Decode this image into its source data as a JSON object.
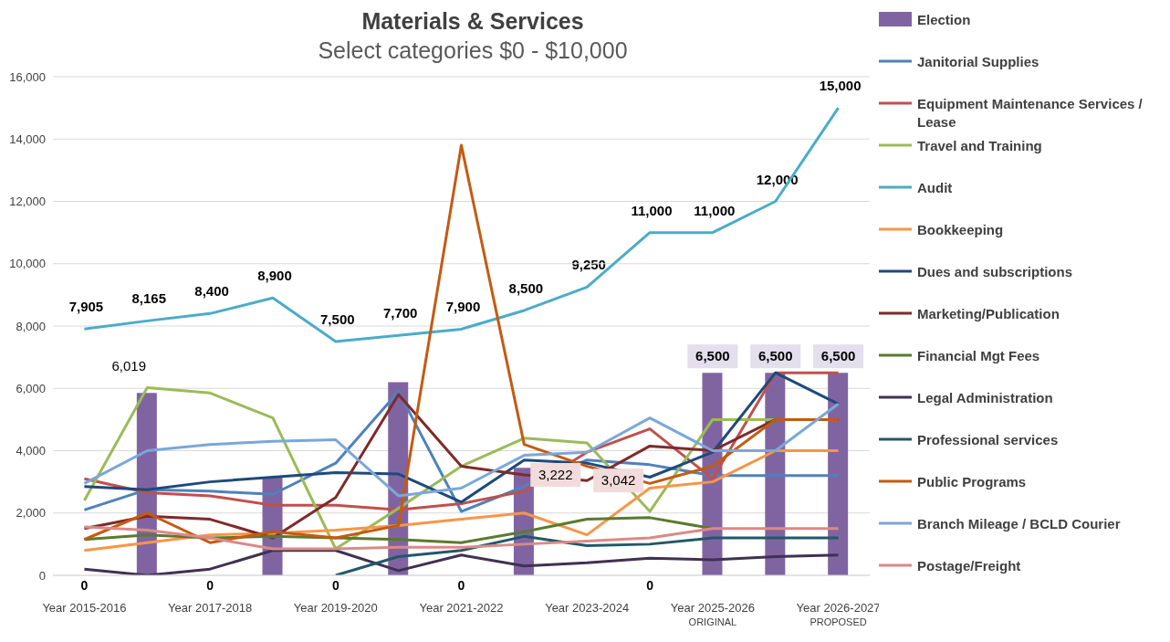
{
  "chart_data": {
    "type": "line",
    "title": "Materials & Services",
    "subtitle": "Select categories $0 - $10,000",
    "categories": [
      "Year 2015-2016",
      null,
      "Year 2017-2018",
      null,
      "Year 2019-2020",
      null,
      "Year 2021-2022",
      null,
      "Year 2023-2024",
      null,
      "Year 2025-2026\nORIGINAL",
      null,
      "Year 2026-2027\nPROPOSED"
    ],
    "series": [
      {
        "name": "Election",
        "type": "bar",
        "color": "#8064a2",
        "values": [
          0,
          5850,
          0,
          3150,
          0,
          6200,
          0,
          3450,
          null,
          0,
          6500,
          6500,
          6500
        ],
        "value_labels": [
          "0",
          null,
          "0",
          null,
          "0",
          null,
          "0",
          null,
          null,
          "0",
          "6,500",
          "6,500",
          "6,500"
        ]
      },
      {
        "name": "Janitorial Supplies",
        "color": "#4f81bd",
        "values": [
          2100,
          2750,
          2700,
          2600,
          3600,
          5900,
          2050,
          2850,
          3700,
          3550,
          3200,
          3200,
          3200
        ]
      },
      {
        "name": "Equipment Maintenance Services / Lease",
        "color": "#c0504d",
        "values": [
          3100,
          2650,
          2550,
          2250,
          2250,
          2100,
          2300,
          2700,
          3950,
          4700,
          3100,
          6500,
          6500
        ]
      },
      {
        "name": "Travel and Training",
        "color": "#9bbb59",
        "values": [
          2400,
          6019,
          5850,
          5050,
          850,
          2150,
          3500,
          4400,
          4250,
          2050,
          5000,
          5000,
          null
        ],
        "value_labels": [
          null,
          "6,019",
          null,
          null,
          null,
          null,
          null,
          null,
          null,
          null,
          null,
          null,
          null
        ]
      },
      {
        "name": "Audit",
        "color": "#4bacc6",
        "values": [
          7905,
          8165,
          8400,
          8900,
          7500,
          7700,
          7900,
          8500,
          9250,
          11000,
          11000,
          12000,
          15000
        ],
        "value_labels": [
          "7,905",
          "8,165",
          "8,400",
          "8,900",
          "7,500",
          "7,700",
          "7,900",
          "8,500",
          "9,250",
          "11,000",
          "11,000",
          "12,000",
          "15,000"
        ]
      },
      {
        "name": "Bookkeeping",
        "color": "#f79646",
        "values": [
          800,
          1050,
          1300,
          1350,
          1450,
          1600,
          1800,
          2000,
          1300,
          2800,
          3000,
          4000,
          4000
        ]
      },
      {
        "name": "Dues and subscriptions",
        "color": "#1f497d",
        "values": [
          2850,
          2750,
          3000,
          3150,
          3300,
          3250,
          2350,
          3700,
          3600,
          3150,
          3950,
          6500,
          5500
        ]
      },
      {
        "name": "Marketing/Publication",
        "color": "#7f2a2a",
        "values": [
          1500,
          1900,
          1800,
          1200,
          2500,
          5800,
          3500,
          3222,
          3042,
          4150,
          4000,
          5000,
          5000
        ],
        "value_labels": [
          null,
          null,
          null,
          null,
          null,
          null,
          null,
          "3,222",
          "3,042",
          null,
          null,
          null,
          null
        ]
      },
      {
        "name": "Financial Mgt Fees",
        "color": "#5a7a2e",
        "values": [
          1150,
          1300,
          1200,
          1250,
          1200,
          1150,
          1050,
          1400,
          1800,
          1850,
          1500,
          null,
          null
        ]
      },
      {
        "name": "Legal Administration",
        "color": "#403152",
        "values": [
          200,
          0,
          200,
          800,
          800,
          150,
          650,
          300,
          400,
          550,
          500,
          600,
          650
        ]
      },
      {
        "name": "Professional services",
        "color": "#215968",
        "values": [
          null,
          null,
          null,
          null,
          0,
          600,
          800,
          1250,
          950,
          1000,
          1200,
          1200,
          1200
        ]
      },
      {
        "name": "Public Programs",
        "color": "#c55a11",
        "values": [
          1150,
          2000,
          1050,
          1400,
          1200,
          1600,
          13800,
          4200,
          3500,
          2950,
          3500,
          5000,
          5000
        ]
      },
      {
        "name": "Branch Mileage / BCLD Courier",
        "color": "#7ba7d9",
        "values": [
          2950,
          4000,
          4200,
          4300,
          4350,
          2550,
          2800,
          3850,
          3950,
          5050,
          4000,
          4000,
          5500
        ]
      },
      {
        "name": "Postage/Freight",
        "color": "#da8a88",
        "values": [
          1550,
          1450,
          1200,
          850,
          850,
          900,
          900,
          1000,
          1100,
          1200,
          1500,
          1500,
          1500
        ]
      }
    ],
    "ylim": [
      0,
      16000
    ],
    "yticks": [
      0,
      {
        "value": 2000,
        "label": "2,000"
      },
      {
        "value": 4000,
        "label": "4,000"
      },
      {
        "value": 6000,
        "label": "6,000"
      },
      {
        "value": 8000,
        "label": "8,000"
      },
      {
        "value": 10000,
        "label": "10,000"
      },
      {
        "value": 12000,
        "label": "12,000"
      },
      {
        "value": 14000,
        "label": "14,000"
      },
      {
        "value": 16000,
        "label": "16,000"
      }
    ],
    "grid": "y",
    "legend": "right",
    "marker": "none",
    "line_style": "solid"
  }
}
